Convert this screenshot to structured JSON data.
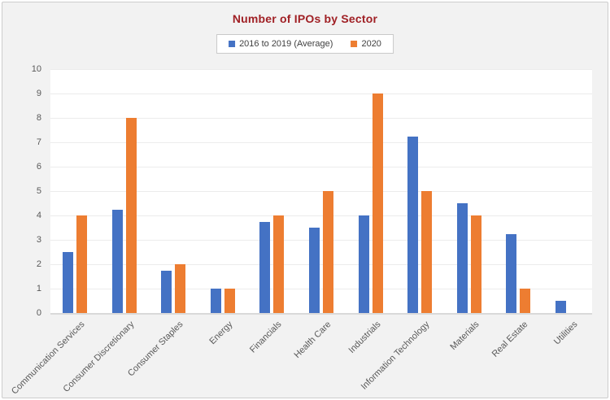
{
  "chart_data": {
    "type": "bar",
    "title": "Number of IPOs by Sector",
    "categories": [
      "Communication Services",
      "Consumer Discretionary",
      "Consumer Staples",
      "Energy",
      "Financials",
      "Health Care",
      "Industrials",
      "Information Technology",
      "Materials",
      "Real Estate",
      "Utilities"
    ],
    "series": [
      {
        "name": "2016 to 2019 (Average)",
        "color": "#4472C4",
        "values": [
          2.5,
          4.25,
          1.75,
          1,
          3.75,
          3.5,
          4,
          7.25,
          4.5,
          3.25,
          0.5
        ]
      },
      {
        "name": "2020",
        "color": "#ED7D31",
        "values": [
          4,
          8,
          2,
          1,
          4,
          5,
          9,
          5,
          4,
          1,
          0
        ]
      }
    ],
    "xlabel": "",
    "ylabel": "",
    "ylim": [
      0,
      10
    ],
    "yticks": [
      0,
      1,
      2,
      3,
      4,
      5,
      6,
      7,
      8,
      9,
      10
    ],
    "grid": true,
    "legend_position": "top-center"
  },
  "colors": {
    "title": "#A02025",
    "series_blue": "#4472C4",
    "series_orange": "#ED7D31",
    "axis_text": "#595959",
    "chart_background": "#F2F2F2",
    "plot_background": "#FFFFFF",
    "gridline": "#ECECEC",
    "axis_line": "#D9D9D9",
    "panel_border": "#CCCCCC",
    "legend_border": "#C9C9C9",
    "legend_background": "#FFFFFF"
  }
}
